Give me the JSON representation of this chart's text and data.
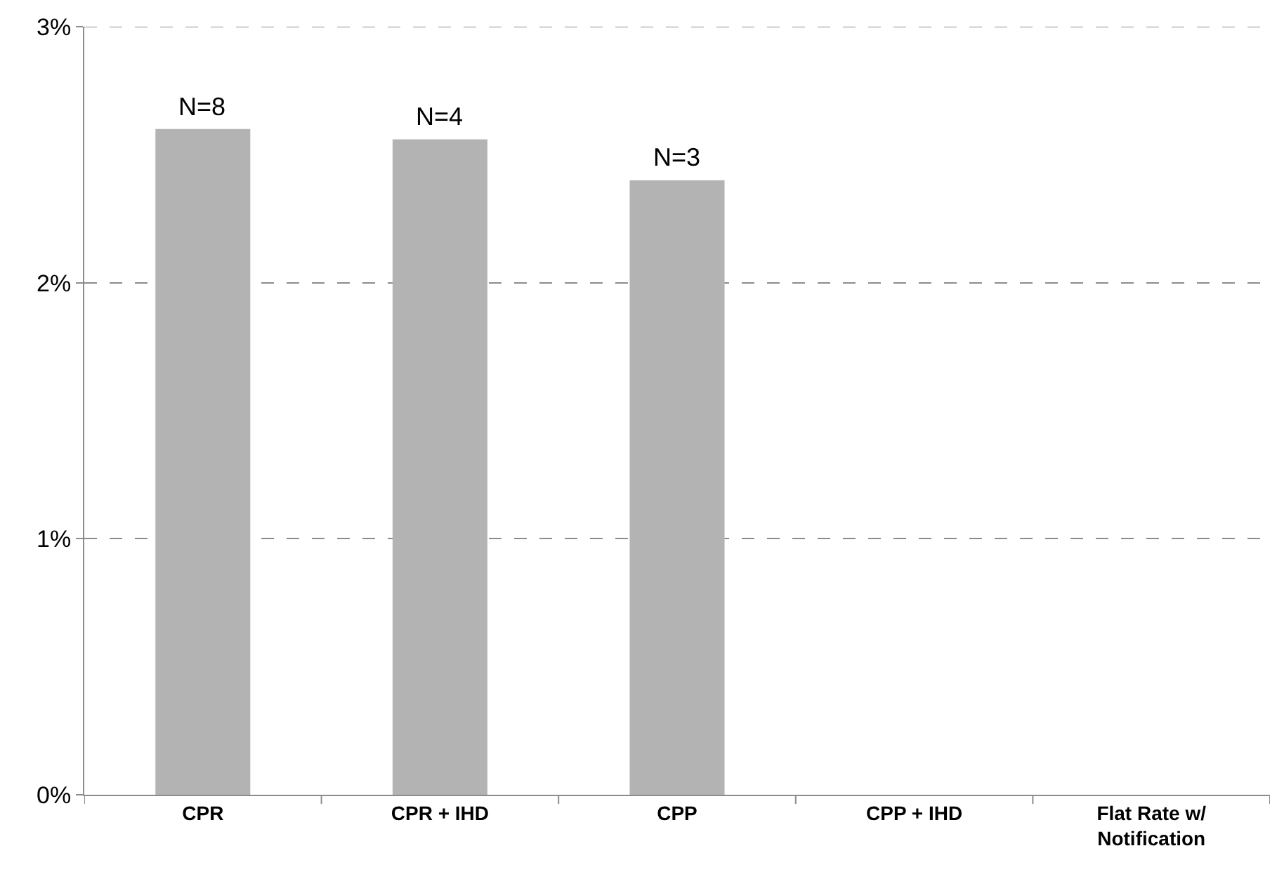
{
  "chart_data": {
    "type": "bar",
    "categories": [
      "CPR",
      "CPR + IHD",
      "CPP",
      "CPP + IHD",
      "Flat Rate w/ Notification"
    ],
    "values": [
      2.6,
      2.56,
      2.4,
      null,
      null
    ],
    "annotations": [
      {
        "text": "N=8",
        "x": "CPR",
        "y": 2.6
      },
      {
        "text": "N=4",
        "x": "CPR + IHD",
        "y": 2.56
      },
      {
        "text": "N=3",
        "x": "CPP",
        "y": 2.4
      }
    ],
    "color": "#b3b3b3",
    "ylim": [
      0,
      3
    ],
    "yticks": [
      {
        "value": 0,
        "label": "0%"
      },
      {
        "value": 1,
        "label": "1%"
      },
      {
        "value": 2,
        "label": "2%"
      },
      {
        "value": 3,
        "label": "3%"
      }
    ],
    "grid": "y",
    "line_style": "dashed",
    "legend": false
  }
}
